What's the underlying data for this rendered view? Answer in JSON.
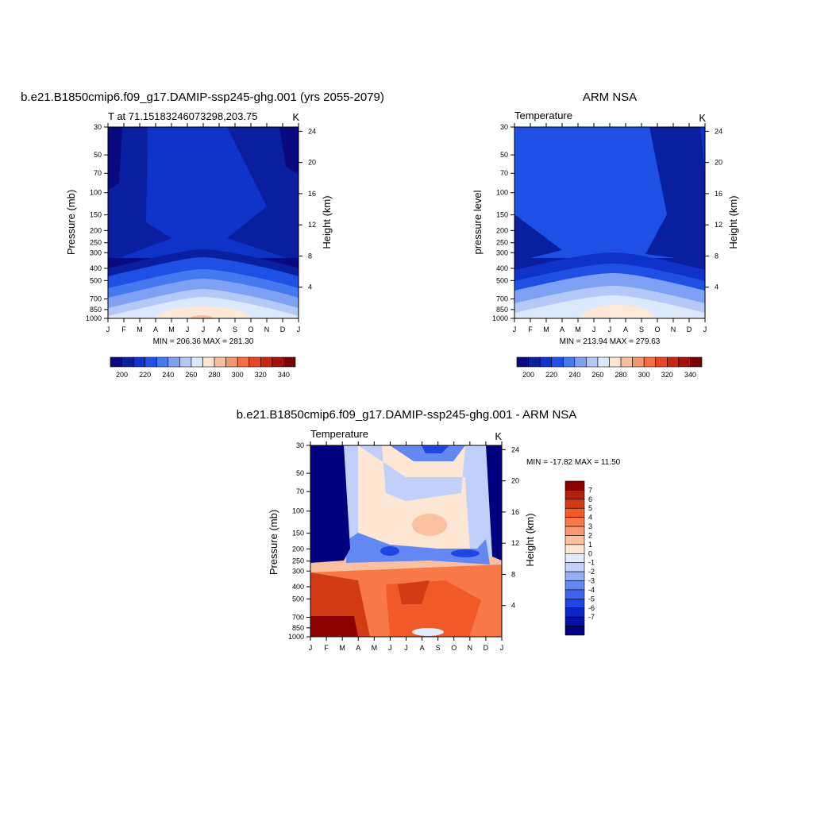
{
  "palette_main": [
    "#0a0a80",
    "#0a1ea0",
    "#0f32c8",
    "#1e50e6",
    "#4678f0",
    "#7ea0f5",
    "#b4c8fa",
    "#dce8fc",
    "#fde8d6",
    "#f9bfa0",
    "#f7966e",
    "#f56e46",
    "#e64620",
    "#c82810",
    "#a01408",
    "#780000"
  ],
  "palette_diff": [
    "#00007f",
    "#0012a8",
    "#0a28c8",
    "#1e46e6",
    "#3c64f0",
    "#6488f2",
    "#96aef6",
    "#c0d0fa",
    "#e2ecfc",
    "#fde6d4",
    "#fbc0a0",
    "#f89870",
    "#f87848",
    "#f05a28",
    "#d23c14",
    "#b41e0a",
    "#8c0000"
  ],
  "month_labels": [
    "J",
    "F",
    "M",
    "A",
    "M",
    "J",
    "J",
    "A",
    "S",
    "O",
    "N",
    "D",
    "J"
  ],
  "chart_data": [
    {
      "type": "heatmap",
      "title": "b.e21.B1850cmip6.f09_g17.DAMIP-ssp245-ghg.001 (yrs 2055-2079)",
      "left_label": "T at 71.15183246073298,203.75",
      "right_label": "K",
      "ylabel": "Pressure (mb)",
      "ylabel_right": "Height (km)",
      "pressure_ticks": [
        30,
        50,
        70,
        100,
        150,
        200,
        250,
        300,
        400,
        500,
        700,
        850,
        1000
      ],
      "height_ticks": [
        24,
        20,
        16,
        12,
        8,
        4
      ],
      "minmax": "MIN = 206.36 MAX = 281.30",
      "colorbar_labels": [
        "200",
        "220",
        "240",
        "260",
        "280",
        "300",
        "320",
        "340"
      ]
    },
    {
      "type": "heatmap",
      "title": "ARM NSA",
      "left_label": "Temperature",
      "right_label": "K",
      "ylabel": "pressure level",
      "ylabel_right": "Height (km)",
      "pressure_ticks": [
        30,
        50,
        70,
        100,
        150,
        200,
        250,
        300,
        400,
        500,
        700,
        850,
        1000
      ],
      "height_ticks": [
        24,
        20,
        16,
        12,
        8,
        4
      ],
      "minmax": "MIN = 213.94 MAX = 279.63",
      "colorbar_labels": [
        "200",
        "220",
        "240",
        "260",
        "280",
        "300",
        "320",
        "340"
      ]
    },
    {
      "type": "heatmap",
      "title": "b.e21.B1850cmip6.f09_g17.DAMIP-ssp245-ghg.001 - ARM NSA",
      "left_label": "Temperature",
      "right_label": "K",
      "ylabel": "Pressure (mb)",
      "ylabel_right": "Height (km)",
      "pressure_ticks": [
        30,
        50,
        70,
        100,
        150,
        200,
        250,
        300,
        400,
        500,
        700,
        850,
        1000
      ],
      "height_ticks": [
        24,
        20,
        16,
        12,
        8,
        4
      ],
      "minmax": "MIN = -17.82 MAX =  11.50",
      "colorbar_labels": [
        "7",
        "6",
        "5",
        "4",
        "3",
        "2",
        "1",
        "0",
        "-1",
        "-2",
        "-3",
        "-4",
        "-5",
        "-6",
        "-7"
      ]
    }
  ]
}
